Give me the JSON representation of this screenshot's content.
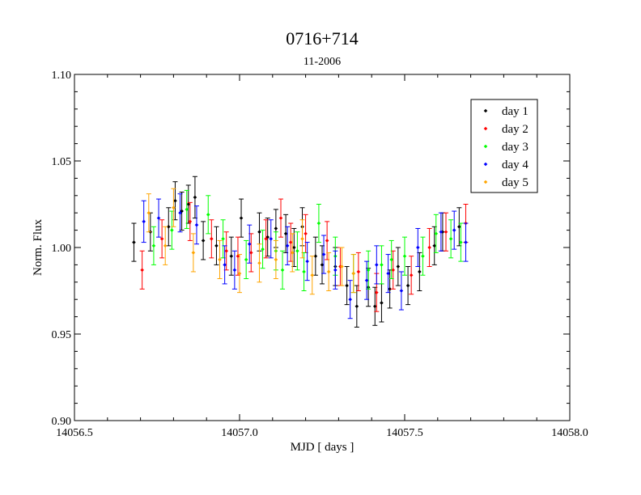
{
  "chart_data": {
    "type": "scatter",
    "title": "0716+714",
    "subtitle": "11-2006",
    "xlabel": "MJD [ days ]",
    "ylabel": "Norm. Flux",
    "xlim": [
      14056.5,
      14058.0
    ],
    "ylim": [
      0.9,
      1.1
    ],
    "xticks": [
      "14056.5",
      "14057.0",
      "14057.5",
      "14058.0"
    ],
    "yticks": [
      "0.90",
      "0.95",
      "1.00",
      "1.05",
      "1.10"
    ],
    "grid": false,
    "legend_position": "top-right",
    "error_bars": true,
    "series": [
      {
        "name": "day 1",
        "color": "#000000",
        "points": [
          {
            "x": 14056.68,
            "y": 1.003,
            "err": 0.011
          },
          {
            "x": 14056.73,
            "y": 1.009,
            "err": 0.011
          },
          {
            "x": 14056.785,
            "y": 1.012,
            "err": 0.011
          },
          {
            "x": 14056.805,
            "y": 1.027,
            "err": 0.011
          },
          {
            "x": 14056.825,
            "y": 1.021,
            "err": 0.011
          },
          {
            "x": 14056.845,
            "y": 1.025,
            "err": 0.011
          },
          {
            "x": 14056.865,
            "y": 1.029,
            "err": 0.012
          },
          {
            "x": 14056.89,
            "y": 1.004,
            "err": 0.011
          },
          {
            "x": 14056.93,
            "y": 1.001,
            "err": 0.011
          },
          {
            "x": 14056.975,
            "y": 0.995,
            "err": 0.011
          },
          {
            "x": 14057.005,
            "y": 1.017,
            "err": 0.011
          },
          {
            "x": 14057.06,
            "y": 1.009,
            "err": 0.011
          },
          {
            "x": 14057.085,
            "y": 1.006,
            "err": 0.011
          },
          {
            "x": 14057.11,
            "y": 1.011,
            "err": 0.011
          },
          {
            "x": 14057.14,
            "y": 1.008,
            "err": 0.011
          },
          {
            "x": 14057.165,
            "y": 1.0,
            "err": 0.011
          },
          {
            "x": 14057.19,
            "y": 1.012,
            "err": 0.011
          },
          {
            "x": 14057.23,
            "y": 0.995,
            "err": 0.011
          },
          {
            "x": 14057.25,
            "y": 0.99,
            "err": 0.011
          },
          {
            "x": 14057.29,
            "y": 0.989,
            "err": 0.011
          },
          {
            "x": 14057.325,
            "y": 0.978,
            "err": 0.011
          },
          {
            "x": 14057.355,
            "y": 0.966,
            "err": 0.012
          },
          {
            "x": 14057.39,
            "y": 0.977,
            "err": 0.011
          },
          {
            "x": 14057.41,
            "y": 0.966,
            "err": 0.011
          },
          {
            "x": 14057.43,
            "y": 0.968,
            "err": 0.011
          },
          {
            "x": 14057.455,
            "y": 0.976,
            "err": 0.011
          },
          {
            "x": 14057.48,
            "y": 0.989,
            "err": 0.011
          },
          {
            "x": 14057.51,
            "y": 0.978,
            "err": 0.011
          },
          {
            "x": 14057.545,
            "y": 0.986,
            "err": 0.011
          },
          {
            "x": 14057.59,
            "y": 1.001,
            "err": 0.011
          },
          {
            "x": 14057.615,
            "y": 1.009,
            "err": 0.011
          },
          {
            "x": 14057.665,
            "y": 1.012,
            "err": 0.011
          }
        ]
      },
      {
        "name": "day 2",
        "color": "#ff0000",
        "points": [
          {
            "x": 14056.705,
            "y": 0.987,
            "err": 0.011
          },
          {
            "x": 14056.765,
            "y": 1.005,
            "err": 0.011
          },
          {
            "x": 14056.85,
            "y": 1.015,
            "err": 0.011
          },
          {
            "x": 14056.915,
            "y": 1.005,
            "err": 0.011
          },
          {
            "x": 14056.96,
            "y": 0.998,
            "err": 0.011
          },
          {
            "x": 14056.995,
            "y": 0.995,
            "err": 0.011
          },
          {
            "x": 14057.035,
            "y": 0.997,
            "err": 0.011
          },
          {
            "x": 14057.08,
            "y": 1.005,
            "err": 0.011
          },
          {
            "x": 14057.125,
            "y": 1.017,
            "err": 0.011
          },
          {
            "x": 14057.155,
            "y": 1.003,
            "err": 0.011
          },
          {
            "x": 14057.2,
            "y": 1.008,
            "err": 0.011
          },
          {
            "x": 14057.265,
            "y": 1.004,
            "err": 0.011
          },
          {
            "x": 14057.305,
            "y": 0.989,
            "err": 0.011
          },
          {
            "x": 14057.36,
            "y": 0.986,
            "err": 0.011
          },
          {
            "x": 14057.415,
            "y": 0.974,
            "err": 0.011
          },
          {
            "x": 14057.465,
            "y": 0.987,
            "err": 0.011
          },
          {
            "x": 14057.52,
            "y": 0.984,
            "err": 0.011
          },
          {
            "x": 14057.575,
            "y": 1.0,
            "err": 0.011
          },
          {
            "x": 14057.625,
            "y": 1.009,
            "err": 0.011
          },
          {
            "x": 14057.685,
            "y": 1.014,
            "err": 0.011
          }
        ]
      },
      {
        "name": "day 3",
        "color": "#00ff00",
        "points": [
          {
            "x": 14056.74,
            "y": 1.001,
            "err": 0.011
          },
          {
            "x": 14056.795,
            "y": 1.01,
            "err": 0.011
          },
          {
            "x": 14056.84,
            "y": 1.022,
            "err": 0.011
          },
          {
            "x": 14056.905,
            "y": 1.019,
            "err": 0.011
          },
          {
            "x": 14056.95,
            "y": 1.005,
            "err": 0.011
          },
          {
            "x": 14057.02,
            "y": 0.993,
            "err": 0.011
          },
          {
            "x": 14057.07,
            "y": 0.999,
            "err": 0.011
          },
          {
            "x": 14057.11,
            "y": 0.998,
            "err": 0.011
          },
          {
            "x": 14057.13,
            "y": 0.987,
            "err": 0.011
          },
          {
            "x": 14057.175,
            "y": 0.998,
            "err": 0.011
          },
          {
            "x": 14057.195,
            "y": 0.986,
            "err": 0.011
          },
          {
            "x": 14057.24,
            "y": 1.014,
            "err": 0.011
          },
          {
            "x": 14057.29,
            "y": 0.995,
            "err": 0.011
          },
          {
            "x": 14057.345,
            "y": 0.985,
            "err": 0.011
          },
          {
            "x": 14057.39,
            "y": 0.987,
            "err": 0.011
          },
          {
            "x": 14057.43,
            "y": 0.99,
            "err": 0.011
          },
          {
            "x": 14057.46,
            "y": 0.993,
            "err": 0.011
          },
          {
            "x": 14057.5,
            "y": 0.995,
            "err": 0.011
          },
          {
            "x": 14057.555,
            "y": 0.995,
            "err": 0.011
          },
          {
            "x": 14057.595,
            "y": 1.008,
            "err": 0.011
          },
          {
            "x": 14057.64,
            "y": 1.005,
            "err": 0.011
          },
          {
            "x": 14057.67,
            "y": 1.003,
            "err": 0.011
          }
        ]
      },
      {
        "name": "day 4",
        "color": "#0000ff",
        "points": [
          {
            "x": 14056.71,
            "y": 1.015,
            "err": 0.012
          },
          {
            "x": 14056.755,
            "y": 1.017,
            "err": 0.011
          },
          {
            "x": 14056.82,
            "y": 1.02,
            "err": 0.011
          },
          {
            "x": 14056.87,
            "y": 1.013,
            "err": 0.011
          },
          {
            "x": 14056.955,
            "y": 0.99,
            "err": 0.011
          },
          {
            "x": 14056.985,
            "y": 0.987,
            "err": 0.011
          },
          {
            "x": 14057.03,
            "y": 1.002,
            "err": 0.011
          },
          {
            "x": 14057.095,
            "y": 1.005,
            "err": 0.011
          },
          {
            "x": 14057.145,
            "y": 1.001,
            "err": 0.011
          },
          {
            "x": 14057.205,
            "y": 0.992,
            "err": 0.011
          },
          {
            "x": 14057.255,
            "y": 0.996,
            "err": 0.011
          },
          {
            "x": 14057.29,
            "y": 0.987,
            "err": 0.011
          },
          {
            "x": 14057.335,
            "y": 0.97,
            "err": 0.011
          },
          {
            "x": 14057.385,
            "y": 0.981,
            "err": 0.011
          },
          {
            "x": 14057.415,
            "y": 0.99,
            "err": 0.011
          },
          {
            "x": 14057.45,
            "y": 0.985,
            "err": 0.011
          },
          {
            "x": 14057.49,
            "y": 0.975,
            "err": 0.011
          },
          {
            "x": 14057.54,
            "y": 1.0,
            "err": 0.011
          },
          {
            "x": 14057.61,
            "y": 1.009,
            "err": 0.011
          },
          {
            "x": 14057.65,
            "y": 1.01,
            "err": 0.011
          },
          {
            "x": 14057.685,
            "y": 1.003,
            "err": 0.011
          }
        ]
      },
      {
        "name": "day 5",
        "color": "#ffa500",
        "points": [
          {
            "x": 14056.725,
            "y": 1.02,
            "err": 0.011
          },
          {
            "x": 14056.775,
            "y": 1.001,
            "err": 0.011
          },
          {
            "x": 14056.8,
            "y": 1.023,
            "err": 0.011
          },
          {
            "x": 14056.86,
            "y": 0.997,
            "err": 0.011
          },
          {
            "x": 14056.94,
            "y": 0.993,
            "err": 0.011
          },
          {
            "x": 14057.0,
            "y": 0.985,
            "err": 0.011
          },
          {
            "x": 14057.06,
            "y": 0.991,
            "err": 0.011
          },
          {
            "x": 14057.11,
            "y": 0.993,
            "err": 0.011
          },
          {
            "x": 14057.16,
            "y": 0.997,
            "err": 0.011
          },
          {
            "x": 14057.19,
            "y": 1.005,
            "err": 0.011
          },
          {
            "x": 14057.22,
            "y": 0.984,
            "err": 0.011
          },
          {
            "x": 14057.27,
            "y": 0.986,
            "err": 0.011
          },
          {
            "x": 14057.31,
            "y": 0.989,
            "err": 0.011
          },
          {
            "x": 14057.345,
            "y": 0.985,
            "err": 0.011
          }
        ]
      }
    ]
  }
}
